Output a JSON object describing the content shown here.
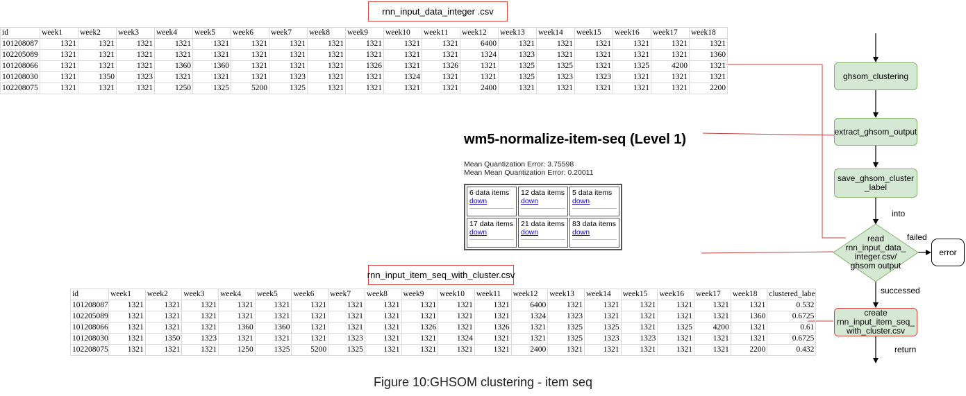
{
  "top_file_label": "rnn_input_data_integer .csv",
  "bottom_file_label": "rnn_input_item_seq_with_cluster.csv",
  "table1": {
    "headers": [
      "id",
      "week1",
      "week2",
      "week3",
      "week4",
      "week5",
      "week6",
      "week7",
      "week8",
      "week9",
      "week10",
      "week11",
      "week12",
      "week13",
      "week14",
      "week15",
      "week16",
      "week17",
      "week18"
    ],
    "rows": [
      [
        "101208087",
        "1321",
        "1321",
        "1321",
        "1321",
        "1321",
        "1321",
        "1321",
        "1321",
        "1321",
        "1321",
        "1321",
        "6400",
        "1321",
        "1321",
        "1321",
        "1321",
        "1321",
        "1321"
      ],
      [
        "102205089",
        "1321",
        "1321",
        "1321",
        "1321",
        "1321",
        "1321",
        "1321",
        "1321",
        "1321",
        "1321",
        "1321",
        "1324",
        "1323",
        "1321",
        "1321",
        "1321",
        "1321",
        "1360"
      ],
      [
        "101208066",
        "1321",
        "1321",
        "1321",
        "1360",
        "1360",
        "1321",
        "1321",
        "1321",
        "1326",
        "1321",
        "1326",
        "1321",
        "1325",
        "1325",
        "1321",
        "1325",
        "4200",
        "1321"
      ],
      [
        "101208030",
        "1321",
        "1350",
        "1323",
        "1321",
        "1321",
        "1321",
        "1323",
        "1321",
        "1321",
        "1324",
        "1321",
        "1321",
        "1325",
        "1323",
        "1323",
        "1321",
        "1321",
        "1321"
      ],
      [
        "102208075",
        "1321",
        "1321",
        "1321",
        "1250",
        "1325",
        "5200",
        "1325",
        "1321",
        "1321",
        "1321",
        "1321",
        "2400",
        "1321",
        "1321",
        "1321",
        "1321",
        "1321",
        "2200"
      ]
    ]
  },
  "table2": {
    "headers": [
      "id",
      "week1",
      "week2",
      "week3",
      "week4",
      "week5",
      "week6",
      "week7",
      "week8",
      "week9",
      "week10",
      "week11",
      "week12",
      "week13",
      "week14",
      "week15",
      "week16",
      "week17",
      "week18",
      "clustered_label"
    ],
    "rows": [
      [
        "101208087",
        "1321",
        "1321",
        "1321",
        "1321",
        "1321",
        "1321",
        "1321",
        "1321",
        "1321",
        "1321",
        "1321",
        "6400",
        "1321",
        "1321",
        "1321",
        "1321",
        "1321",
        "1321",
        "0.532"
      ],
      [
        "102205089",
        "1321",
        "1321",
        "1321",
        "1321",
        "1321",
        "1321",
        "1321",
        "1321",
        "1321",
        "1321",
        "1321",
        "1324",
        "1323",
        "1321",
        "1321",
        "1321",
        "1321",
        "1360",
        "0.6725"
      ],
      [
        "101208066",
        "1321",
        "1321",
        "1321",
        "1360",
        "1360",
        "1321",
        "1321",
        "1321",
        "1326",
        "1321",
        "1326",
        "1321",
        "1325",
        "1325",
        "1321",
        "1325",
        "4200",
        "1321",
        "0.61"
      ],
      [
        "101208030",
        "1321",
        "1350",
        "1323",
        "1321",
        "1321",
        "1321",
        "1323",
        "1321",
        "1321",
        "1324",
        "1321",
        "1321",
        "1325",
        "1323",
        "1323",
        "1321",
        "1321",
        "1321",
        "0.6725"
      ],
      [
        "102208075",
        "1321",
        "1321",
        "1321",
        "1250",
        "1325",
        "5200",
        "1325",
        "1321",
        "1321",
        "1321",
        "1321",
        "2400",
        "1321",
        "1321",
        "1321",
        "1321",
        "1321",
        "2200",
        "0.432"
      ]
    ]
  },
  "ghsom_output": {
    "title": "wm5-normalize-item-seq (Level 1)",
    "mqe": "Mean Quantization Error: 3.75598",
    "mmqe": "Mean Mean Quantization Error: 0.20011",
    "link_text": "down",
    "cells": [
      "6 data items",
      "12 data items",
      "5 data items",
      "17 data items",
      "21 data items",
      "83 data items"
    ]
  },
  "flowchart": {
    "nodes": {
      "ghsom_clustering": "ghsom_clustering",
      "extract": "extract_ghsom_output",
      "save_l1": "save_ghsom_cluster",
      "save_l2": "_label",
      "read_l1": "read",
      "read_l2": "rnn_input_data_",
      "read_l3": "integer.csv/",
      "read_l4": "ghsom output",
      "create_l1": "create",
      "create_l2": "rnn_input_item_seq_",
      "create_l3": "with_cluster.csv",
      "error": "error"
    },
    "edge_labels": {
      "into": "into",
      "failed": "failed",
      "successed": "successed",
      "return": "return"
    }
  },
  "caption": "Figure 10:GHSOM clustering - item seq"
}
